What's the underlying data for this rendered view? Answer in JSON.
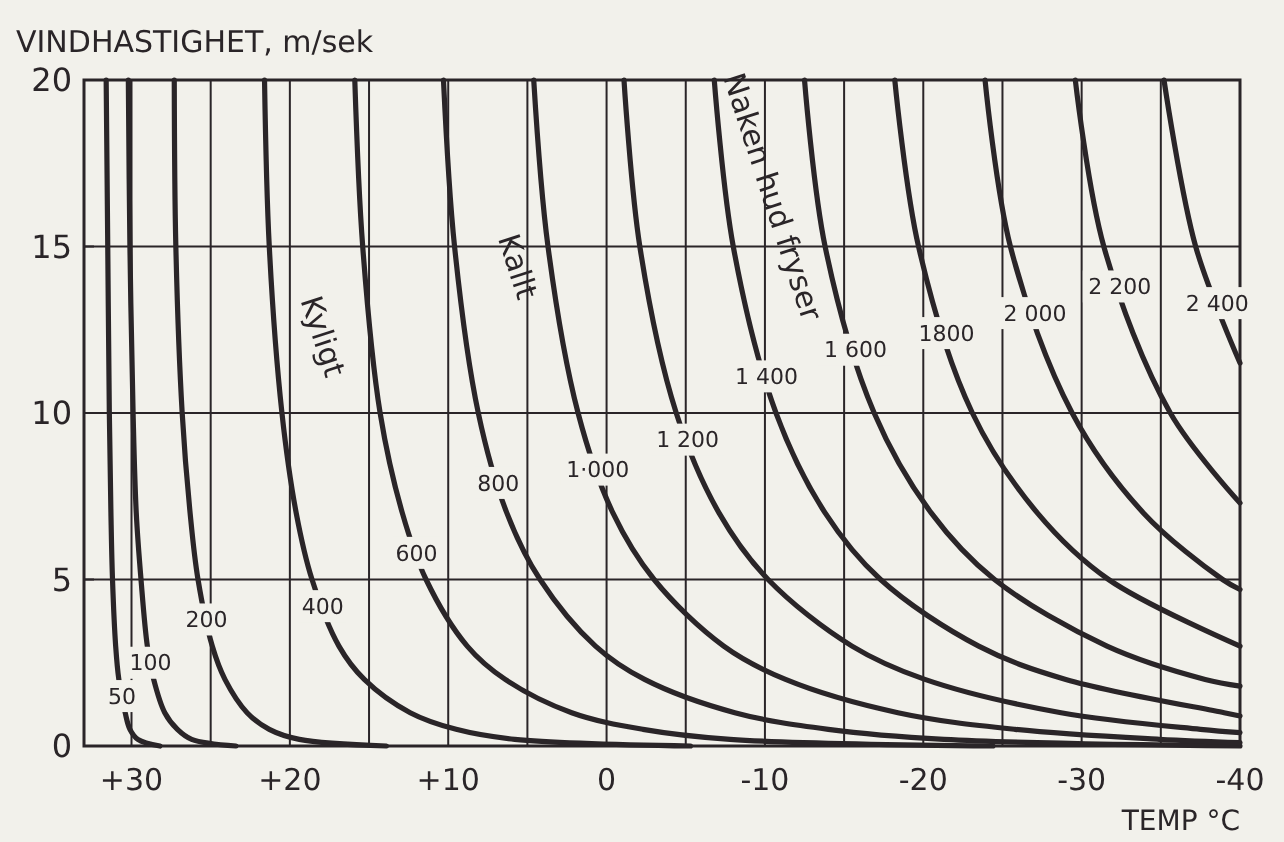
{
  "chart_data": {
    "type": "line",
    "ylabel": "VINDHASTIGHET, m/sek",
    "xlabel": "TEMP °C",
    "xlim": [
      33,
      -40
    ],
    "ylim": [
      0,
      20
    ],
    "xticks": [
      {
        "value": 30,
        "label": "+30"
      },
      {
        "value": 25,
        "label": null
      },
      {
        "value": 20,
        "label": "+20"
      },
      {
        "value": 15,
        "label": null
      },
      {
        "value": 10,
        "label": "+10"
      },
      {
        "value": 5,
        "label": null
      },
      0,
      {
        "value": -5,
        "label": null
      },
      -10,
      {
        "value": -15,
        "label": null
      },
      -20,
      {
        "value": -25,
        "label": null
      },
      -30,
      {
        "value": -35,
        "label": null
      },
      -40
    ],
    "yticks": [
      0,
      5,
      10,
      15,
      20
    ],
    "grid": true,
    "marker": "none",
    "line_style": "solid",
    "series": [
      {
        "name": "50",
        "color": "#2a2528",
        "x": [
          31.6,
          31.5,
          31.4,
          31.3,
          31.2,
          31.0,
          30.8,
          30.4,
          30.1,
          29.6,
          28.2
        ],
        "values": [
          20,
          15,
          10,
          7,
          5,
          3,
          2,
          1,
          0.5,
          0.2,
          0
        ]
      },
      {
        "name": "100",
        "color": "#2a2528",
        "x": [
          30.2,
          30.1,
          29.9,
          29.7,
          29.4,
          29.0,
          28.6,
          27.9,
          27.1,
          26.2,
          23.4
        ],
        "values": [
          20,
          15,
          10,
          7,
          5,
          3,
          2,
          1,
          0.5,
          0.2,
          0
        ]
      },
      {
        "name": "200",
        "color": "#2a2528",
        "x": [
          27.3,
          27.2,
          26.8,
          26.3,
          25.8,
          24.9,
          24.1,
          22.7,
          21.3,
          19.4,
          13.9
        ],
        "values": [
          20,
          15,
          10,
          7,
          5,
          3,
          2,
          1,
          0.5,
          0.2,
          0
        ]
      },
      {
        "name": "400",
        "color": "#2a2528",
        "x": [
          21.6,
          21.3,
          20.5,
          19.6,
          18.6,
          16.9,
          15.3,
          12.4,
          9.5,
          5.8,
          -5.3
        ],
        "values": [
          20,
          15,
          10,
          7,
          5,
          3,
          2,
          1,
          0.5,
          0.2,
          0
        ]
      },
      {
        "name": "600",
        "color": "#2a2528",
        "x": [
          15.9,
          15.4,
          14.3,
          12.9,
          11.4,
          8.8,
          6.4,
          2.2,
          -2.3,
          -7.8,
          -24.4
        ],
        "values": [
          20,
          15,
          10,
          7,
          5,
          3,
          2,
          1,
          0.5,
          0.2,
          0
        ]
      },
      {
        "name": "800",
        "color": "#2a2528",
        "x": [
          10.3,
          9.6,
          8.1,
          6.3,
          4.2,
          0.7,
          -2.4,
          -8.1,
          -14.0,
          -21.3,
          -40
        ],
        "values": [
          20,
          15,
          10,
          7,
          5,
          3,
          2,
          1,
          0.5,
          0.2,
          0
        ]
      },
      {
        "name": "1·000",
        "color": "#2a2528",
        "x": [
          4.6,
          3.7,
          1.8,
          -0.4,
          -3.0,
          -7.4,
          -11.3,
          -18.4,
          -25.8,
          -34.9,
          -40
        ],
        "values": [
          20,
          15,
          10,
          7,
          5,
          3,
          2,
          1,
          0.5,
          0.2,
          0.1
        ]
      },
      {
        "name": "1 200",
        "color": "#2a2528",
        "x": [
          -1.1,
          -2.1,
          -4.4,
          -7.1,
          -10.2,
          -15.5,
          -20.1,
          -28.7,
          -37.5,
          -40
        ],
        "values": [
          20,
          15,
          10,
          7,
          5,
          3,
          2,
          1,
          0.5,
          0.4
        ]
      },
      {
        "name": "1 400",
        "color": "#2a2528",
        "x": [
          -6.8,
          -8.0,
          -10.7,
          -13.8,
          -17.3,
          -23.5,
          -29.0,
          -39.0,
          -40
        ],
        "values": [
          20,
          15,
          10,
          7,
          5,
          3,
          2,
          1,
          0.9
        ]
      },
      {
        "name": "1 600",
        "color": "#2a2528",
        "x": [
          -12.5,
          -13.8,
          -16.9,
          -20.5,
          -24.5,
          -31.6,
          -37.8,
          -40
        ],
        "values": [
          20,
          15,
          10,
          7,
          5,
          3,
          2,
          1.8
        ]
      },
      {
        "name": "1800",
        "color": "#2a2528",
        "x": [
          -18.2,
          -19.7,
          -23.1,
          -27.2,
          -31.7,
          -40
        ],
        "values": [
          20,
          15,
          10,
          7,
          5,
          3
        ]
      },
      {
        "name": "2 000",
        "color": "#2a2528",
        "x": [
          -23.9,
          -25.5,
          -29.4,
          -33.9,
          -38.9,
          -40
        ],
        "values": [
          20,
          15,
          10,
          7,
          5,
          4.7
        ]
      },
      {
        "name": "2 200",
        "color": "#2a2528",
        "x": [
          -29.6,
          -31.4,
          -35.6,
          -40
        ],
        "values": [
          20,
          15,
          10,
          7.3
        ]
      },
      {
        "name": "2 400",
        "color": "#2a2528",
        "x": [
          -35.2,
          -37.2,
          -40
        ],
        "values": [
          20,
          15,
          11.5
        ]
      }
    ],
    "annotations": [
      "Kyligt",
      "Kallt",
      "Naken hud fryser"
    ]
  }
}
